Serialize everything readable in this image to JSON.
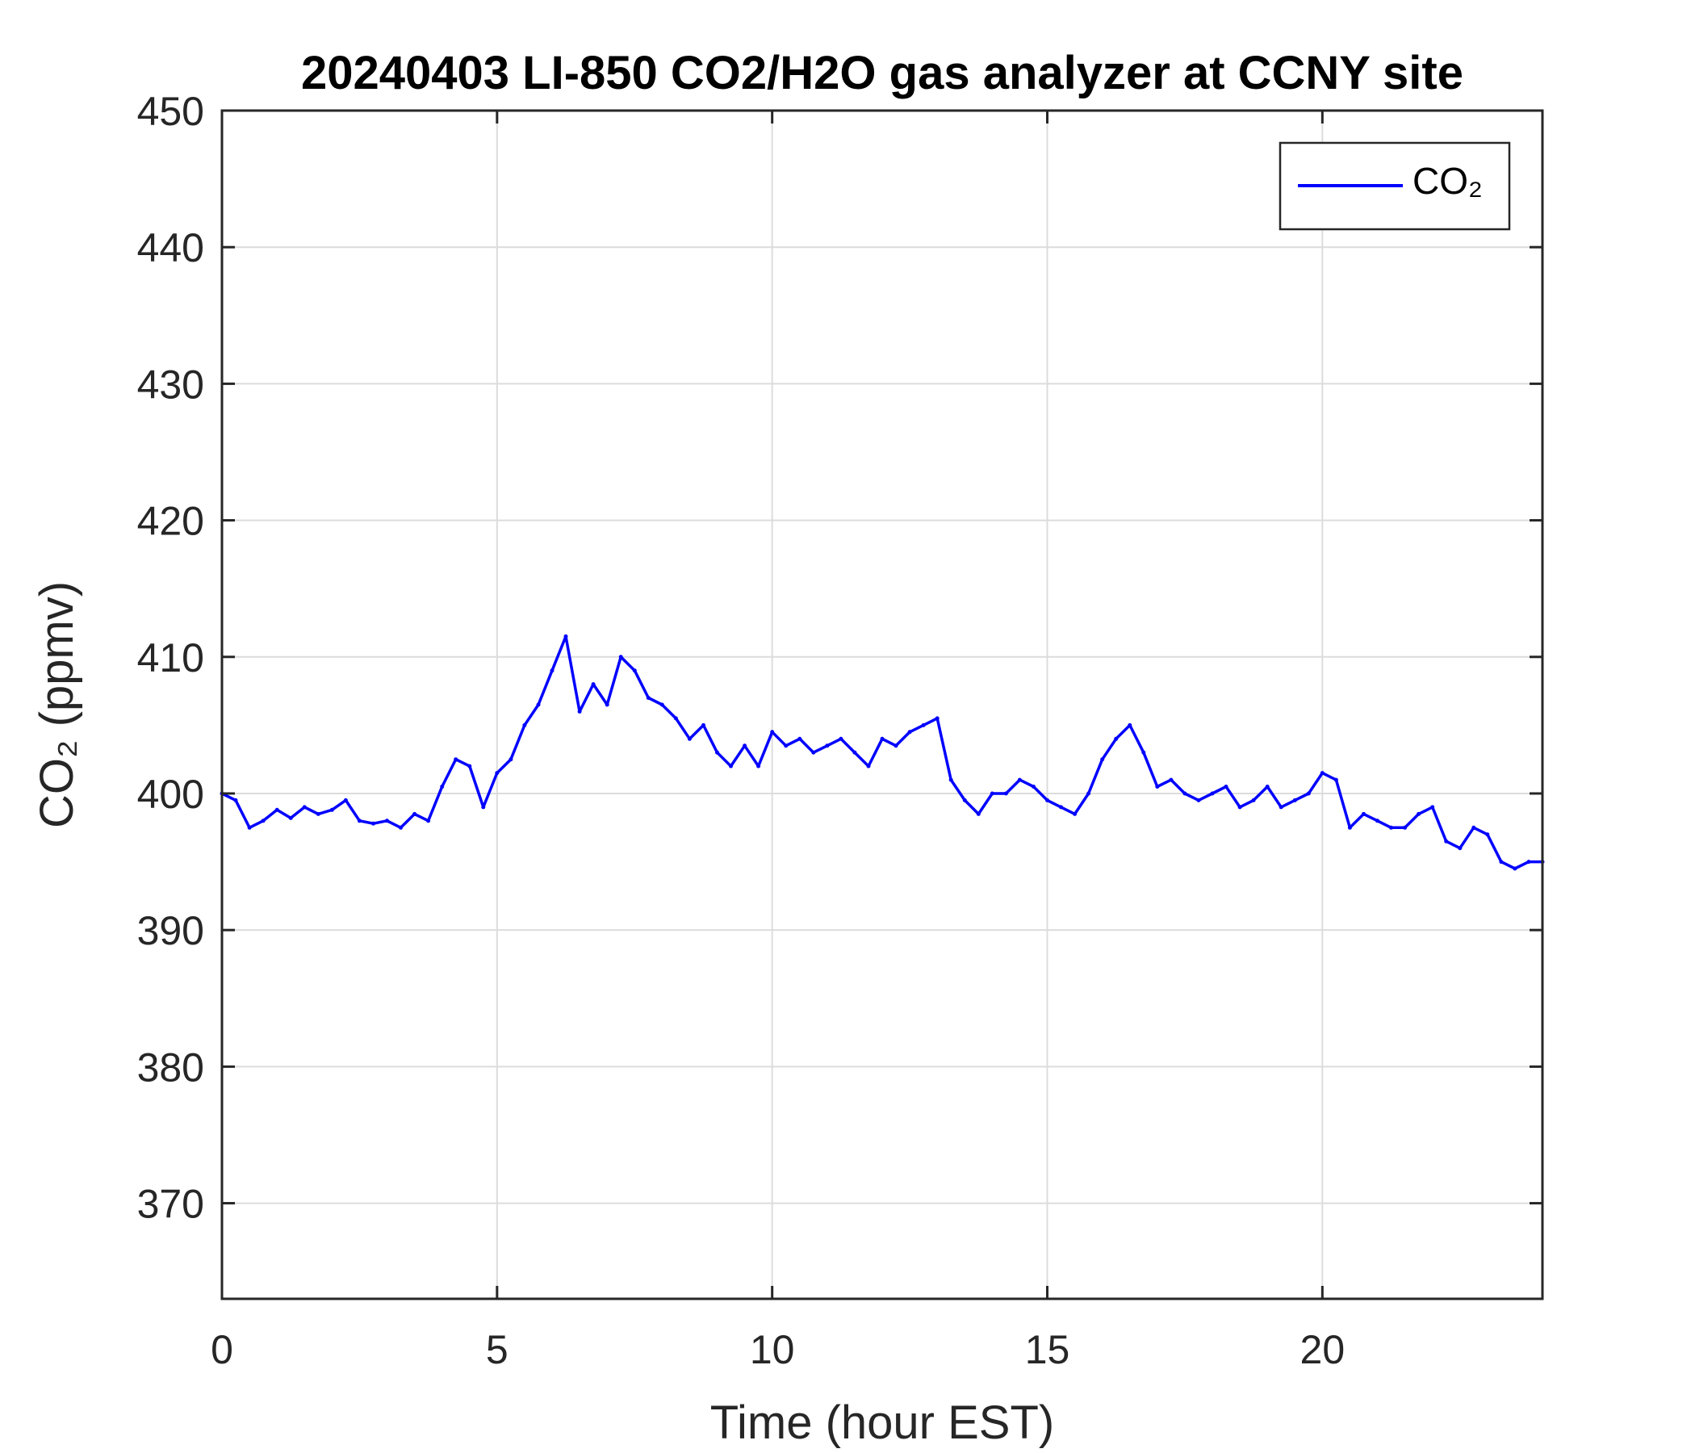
{
  "chart_data": {
    "type": "line",
    "title": "20240403 LI-850 CO2/H2O gas analyzer at CCNY site",
    "xlabel": "Time (hour EST)",
    "ylabel": "CO₂ (ppmv)",
    "xlim": [
      0,
      24
    ],
    "ylim": [
      363,
      450
    ],
    "xticks": [
      0,
      5,
      10,
      15,
      20
    ],
    "yticks": [
      370,
      380,
      390,
      400,
      410,
      420,
      430,
      440,
      450
    ],
    "grid": true,
    "legend": {
      "position": "top-right",
      "entries": [
        "CO₂"
      ]
    },
    "colors": {
      "series": "#0000ff",
      "grid": "#dcdcdc",
      "axis": "#262626"
    },
    "series": [
      {
        "name": "CO₂",
        "x": [
          0.0,
          0.25,
          0.5,
          0.75,
          1.0,
          1.25,
          1.5,
          1.75,
          2.0,
          2.25,
          2.5,
          2.75,
          3.0,
          3.25,
          3.5,
          3.75,
          4.0,
          4.25,
          4.5,
          4.75,
          5.0,
          5.25,
          5.5,
          5.75,
          6.0,
          6.25,
          6.5,
          6.75,
          7.0,
          7.25,
          7.5,
          7.75,
          8.0,
          8.25,
          8.5,
          8.75,
          9.0,
          9.25,
          9.5,
          9.75,
          10.0,
          10.25,
          10.5,
          10.75,
          11.0,
          11.25,
          11.5,
          11.75,
          12.0,
          12.25,
          12.5,
          12.75,
          13.0,
          13.25,
          13.5,
          13.75,
          14.0,
          14.25,
          14.5,
          14.75,
          15.0,
          15.25,
          15.5,
          15.75,
          16.0,
          16.25,
          16.5,
          16.75,
          17.0,
          17.25,
          17.5,
          17.75,
          18.0,
          18.25,
          18.5,
          18.75,
          19.0,
          19.25,
          19.5,
          19.75,
          20.0,
          20.25,
          20.5,
          20.75,
          21.0,
          21.25,
          21.5,
          21.75,
          22.0,
          22.25,
          22.5,
          22.75,
          23.0,
          23.25,
          23.5,
          23.75,
          24.0
        ],
        "values": [
          400.0,
          399.5,
          397.5,
          398.0,
          398.8,
          398.2,
          399.0,
          398.5,
          398.8,
          399.5,
          398.0,
          397.8,
          398.0,
          397.5,
          398.5,
          398.0,
          400.5,
          402.5,
          402.0,
          399.0,
          401.5,
          402.5,
          405.0,
          406.5,
          409.0,
          411.5,
          406.0,
          408.0,
          406.5,
          410.0,
          409.0,
          407.0,
          406.5,
          405.5,
          404.0,
          405.0,
          403.0,
          402.0,
          403.5,
          402.0,
          404.5,
          403.5,
          404.0,
          403.0,
          403.5,
          404.0,
          403.0,
          402.0,
          404.0,
          403.5,
          404.5,
          405.0,
          405.5,
          401.0,
          399.5,
          398.5,
          400.0,
          400.0,
          401.0,
          400.5,
          399.5,
          399.0,
          398.5,
          400.0,
          402.5,
          404.0,
          405.0,
          403.0,
          400.5,
          401.0,
          400.0,
          399.5,
          400.0,
          400.5,
          399.0,
          399.5,
          400.5,
          399.0,
          399.5,
          400.0,
          401.5,
          401.0,
          397.5,
          398.5,
          398.0,
          397.5,
          397.5,
          398.5,
          399.0,
          396.5,
          396.0,
          397.5,
          397.0,
          395.0,
          394.5,
          395.0,
          395.0
        ]
      }
    ]
  }
}
